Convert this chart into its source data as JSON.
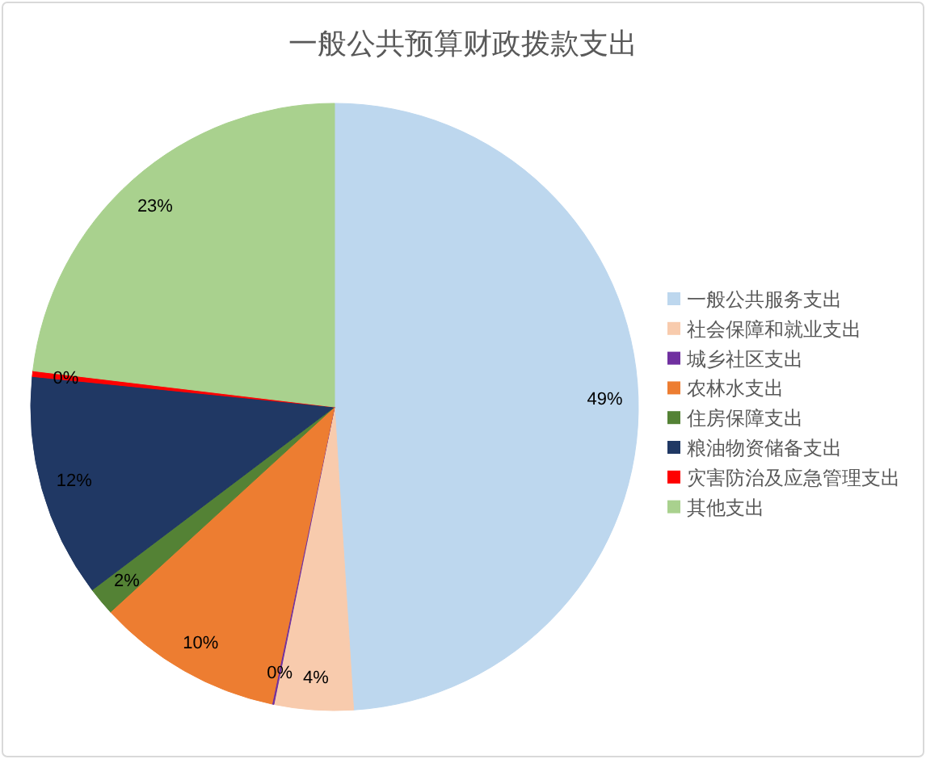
{
  "chart_data": {
    "type": "pie",
    "title": "一般公共预算财政拨款支出",
    "categories": [
      "一般公共服务支出",
      "社会保障和就业支出",
      "城乡社区支出",
      "农林水支出",
      "住房保障支出",
      "粮油物资储备支出",
      "灾害防治及应急管理支出",
      "其他支出"
    ],
    "values": [
      49.0,
      4.2,
      0.1,
      9.9,
      1.5,
      11.9,
      0.3,
      23.1
    ],
    "value_labels": [
      "49%",
      "4%",
      "0%",
      "10%",
      "2%",
      "12%",
      "0%",
      "23%"
    ],
    "colors": [
      "#bdd7ee",
      "#f8cbad",
      "#7030a0",
      "#ed7d31",
      "#548235",
      "#203864",
      "#ff0000",
      "#a9d18e"
    ],
    "legend": "right"
  }
}
